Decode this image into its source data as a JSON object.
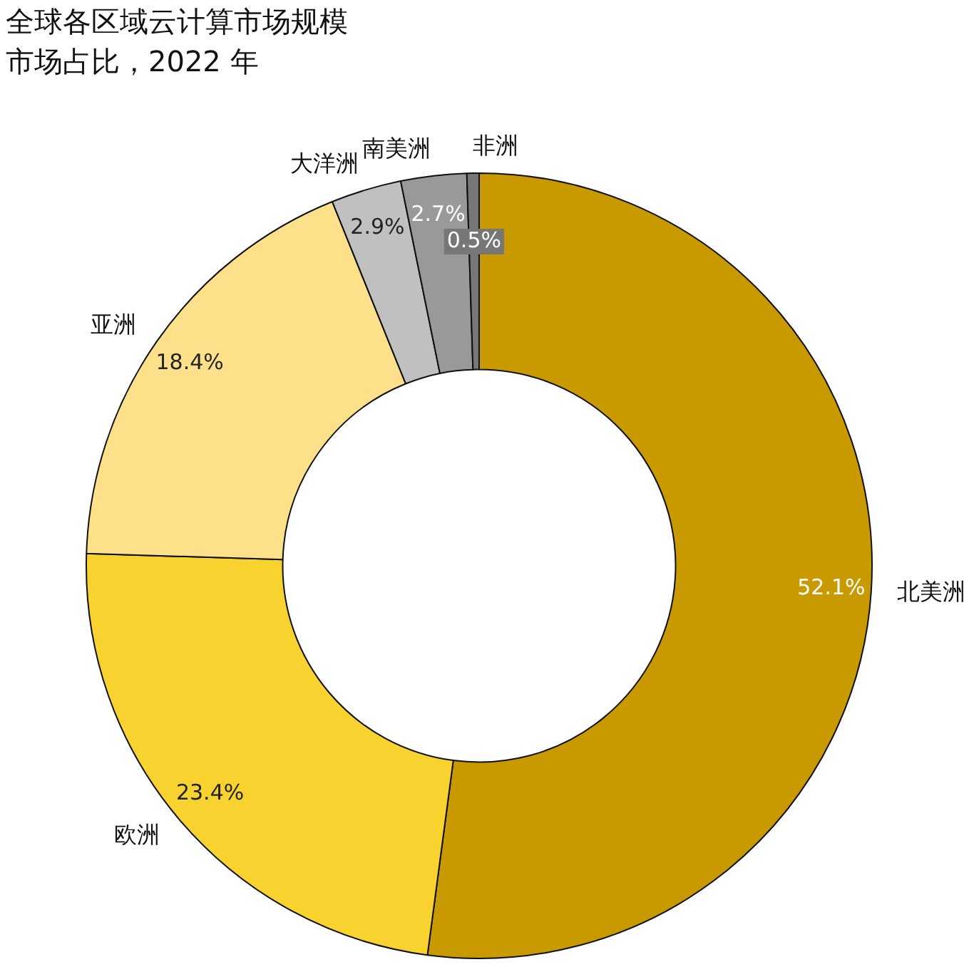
{
  "chart_data": {
    "type": "donut",
    "title": "全球各区域云计算市场规模",
    "subtitle": "市场占比，2022 年",
    "categories": [
      "北美洲",
      "欧洲",
      "亚洲",
      "大洋洲",
      "南美洲",
      "非洲"
    ],
    "values": [
      52.1,
      23.4,
      18.4,
      2.9,
      2.7,
      0.5
    ],
    "value_labels": [
      "52.1%",
      "23.4%",
      "18.4%",
      "2.9%",
      "2.7%",
      "0.5%"
    ],
    "colors": [
      "#c89a00",
      "#f8d22e",
      "#fde08a",
      "#c0c0c0",
      "#999999",
      "#777777"
    ],
    "legend": false
  }
}
